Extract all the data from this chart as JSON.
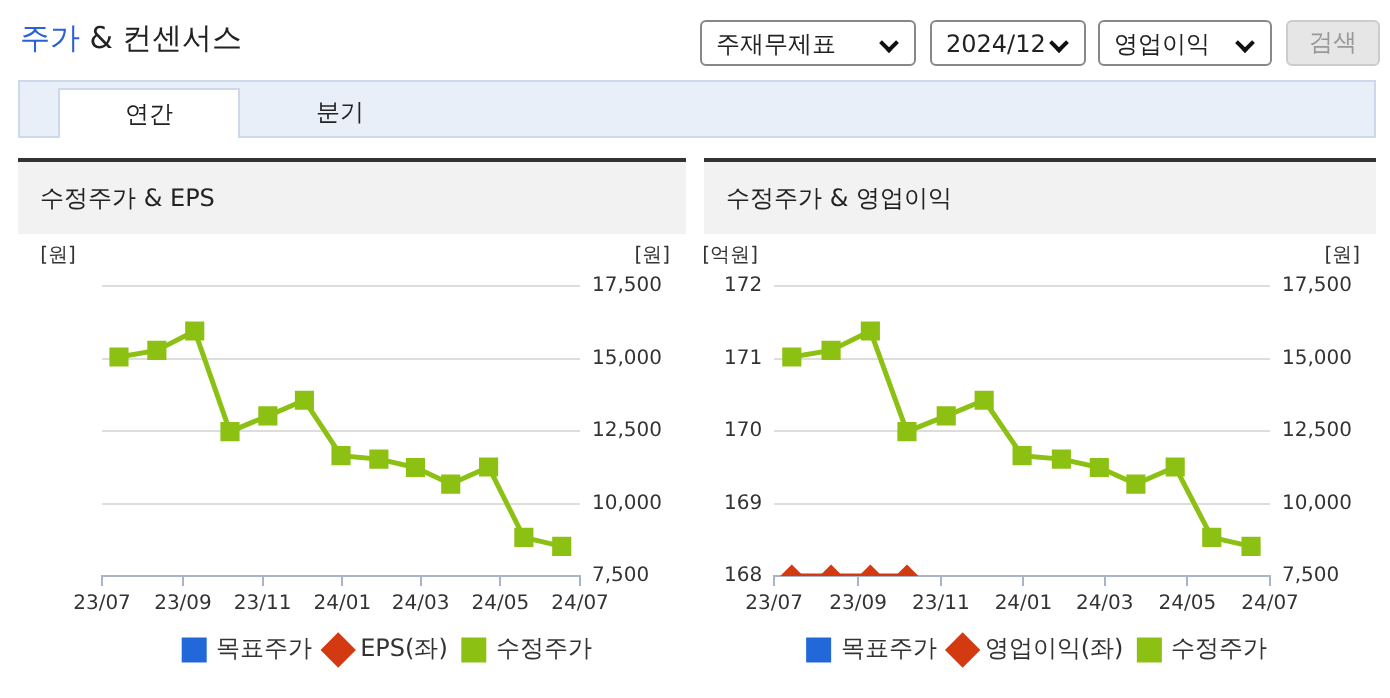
{
  "chart_data": [
    {
      "type": "other",
      "title": "주가 & 컨센서스",
      "annotations": [
        "주재무제표",
        "2024/12",
        "영업이익",
        "검색",
        "연간",
        "분기"
      ]
    },
    {
      "type": "line",
      "title": "수정주가 & EPS",
      "ylabel": "[원]",
      "y2label": "[원]",
      "x": [
        "2023-07-14",
        "2023-08-12",
        "2023-09-10",
        "2023-10-07",
        "2023-11-05",
        "2023-12-03",
        "2023-12-31",
        "2024-01-29",
        "2024-02-26",
        "2024-03-24",
        "2024-04-22",
        "2024-05-19",
        "2024-06-17"
      ],
      "xlim": [
        "2023-07",
        "2024-07"
      ],
      "xticks": [
        {
          "value": "2023-07",
          "label": "23/07"
        },
        {
          "value": "2023-09",
          "label": "23/09"
        },
        {
          "value": "2023-11",
          "label": "23/11"
        },
        {
          "value": "2024-01",
          "label": "24/01"
        },
        {
          "value": "2024-03",
          "label": "24/03"
        },
        {
          "value": "2024-05",
          "label": "24/05"
        },
        {
          "value": "2024-07",
          "label": "24/07"
        }
      ],
      "y2lim": [
        7500,
        17500
      ],
      "y2ticks": [
        {
          "value": 7500,
          "label": "7,500"
        },
        {
          "value": 10000,
          "label": "10,000"
        },
        {
          "value": 12500,
          "label": "12,500"
        },
        {
          "value": 15000,
          "label": "15,000"
        },
        {
          "value": 17500,
          "label": "17,500"
        }
      ],
      "grid": "y",
      "legend": "bottom",
      "series": [
        {
          "name": "목표주가",
          "color": "#2268d8",
          "marker": "square",
          "axis": "y2",
          "values": [
            null,
            null,
            null,
            null,
            null,
            null,
            null,
            null,
            null,
            null,
            null,
            null,
            null
          ]
        },
        {
          "name": "EPS(좌)",
          "color": "#d33a12",
          "marker": "diamond",
          "axis": "y",
          "values": [
            null,
            null,
            null,
            null,
            null,
            null,
            null,
            null,
            null,
            null,
            null,
            null,
            null
          ]
        },
        {
          "name": "수정주가",
          "color": "#8cc114",
          "marker": "square",
          "axis": "y2",
          "values": [
            15050,
            15280,
            15950,
            12480,
            13020,
            13560,
            11650,
            11530,
            11240,
            10670,
            11260,
            8830,
            8520
          ]
        }
      ]
    },
    {
      "type": "line",
      "title": "수정주가 & 영업이익",
      "ylabel": "[억원]",
      "y2label": "[원]",
      "x": [
        "2023-07-14",
        "2023-08-12",
        "2023-09-10",
        "2023-10-07",
        "2023-11-05",
        "2023-12-03",
        "2023-12-31",
        "2024-01-29",
        "2024-02-26",
        "2024-03-24",
        "2024-04-22",
        "2024-05-19",
        "2024-06-17"
      ],
      "xlim": [
        "2023-07",
        "2024-07"
      ],
      "xticks": [
        {
          "value": "2023-07",
          "label": "23/07"
        },
        {
          "value": "2023-09",
          "label": "23/09"
        },
        {
          "value": "2023-11",
          "label": "23/11"
        },
        {
          "value": "2024-01",
          "label": "24/01"
        },
        {
          "value": "2024-03",
          "label": "24/03"
        },
        {
          "value": "2024-05",
          "label": "24/05"
        },
        {
          "value": "2024-07",
          "label": "24/07"
        }
      ],
      "ylim": [
        168,
        172
      ],
      "yticks": [
        168,
        169,
        170,
        171,
        172
      ],
      "y2lim": [
        7500,
        17500
      ],
      "y2ticks": [
        {
          "value": 7500,
          "label": "7,500"
        },
        {
          "value": 10000,
          "label": "10,000"
        },
        {
          "value": 12500,
          "label": "12,500"
        },
        {
          "value": 15000,
          "label": "15,000"
        },
        {
          "value": 17500,
          "label": "17,500"
        }
      ],
      "grid": "y",
      "legend": "bottom",
      "series": [
        {
          "name": "목표주가",
          "color": "#2268d8",
          "marker": "square",
          "axis": "y2",
          "values": [
            null,
            null,
            null,
            null,
            null,
            null,
            null,
            null,
            null,
            null,
            null,
            null,
            null
          ]
        },
        {
          "name": "영업이익(좌)",
          "color": "#d33a12",
          "marker": "diamond",
          "axis": "y",
          "values": [
            168,
            168,
            168,
            168,
            null,
            null,
            null,
            null,
            null,
            null,
            null,
            null,
            null
          ]
        },
        {
          "name": "수정주가",
          "color": "#8cc114",
          "marker": "square",
          "axis": "y2",
          "values": [
            15050,
            15280,
            15950,
            12480,
            13020,
            13560,
            11650,
            11530,
            11240,
            10670,
            11260,
            8830,
            8520
          ]
        }
      ]
    }
  ]
}
